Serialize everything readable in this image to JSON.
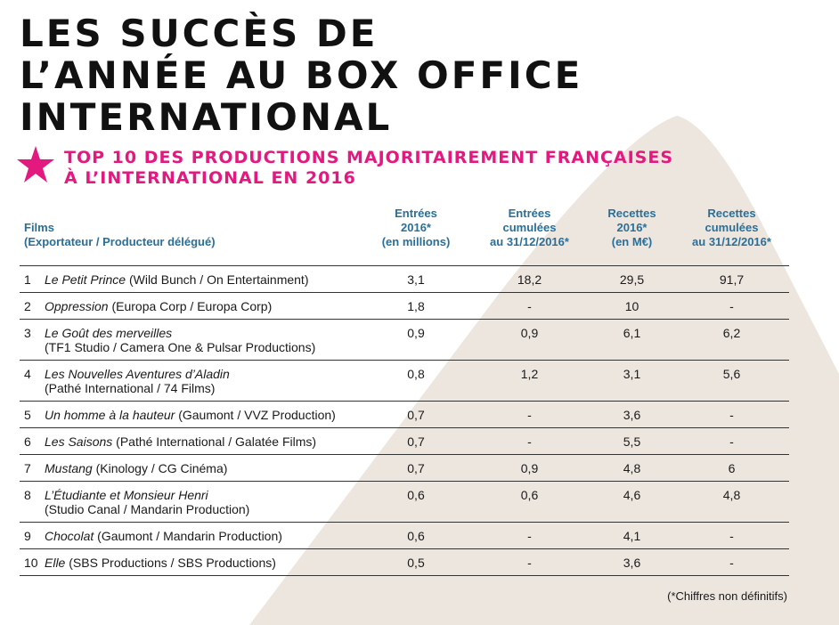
{
  "header": {
    "title": [
      "LES SUCCÈS DE",
      "L’ANNÉE AU BOX OFFICE",
      "INTERNATIONAL"
    ],
    "subtitle": [
      "TOP 10 DES PRODUCTIONS MAJORITAIREMENT FRANÇAISES",
      "À L’INTERNATIONAL EN 2016"
    ]
  },
  "table": {
    "columns": [
      [
        "Films",
        "(Exportateur / Producteur délégué)"
      ],
      [
        "Entrées",
        "2016*",
        "(en millions)"
      ],
      [
        "Entrées",
        "cumulées",
        "au 31/12/2016*"
      ],
      [
        "Recettes",
        "2016*",
        "(en M€)"
      ],
      [
        "Recettes",
        "cumulées",
        "au 31/12/2016*"
      ]
    ],
    "rows": [
      {
        "rank": "1",
        "title": "Le Petit Prince",
        "credits": "(Wild Bunch / On Entertainment)",
        "cells": [
          "3,1",
          "18,2",
          "29,5",
          "91,7"
        ]
      },
      {
        "rank": "2",
        "title": "Oppression",
        "credits": "(Europa Corp / Europa Corp)",
        "cells": [
          "1,8",
          "-",
          "10",
          "-"
        ]
      },
      {
        "rank": "3",
        "title": "Le Goût des merveilles",
        "credits": "(TF1 Studio / Camera One & Pulsar Productions)",
        "wrap": true,
        "cells": [
          "0,9",
          "0,9",
          "6,1",
          "6,2"
        ]
      },
      {
        "rank": "4",
        "title": "Les Nouvelles Aventures d’Aladin",
        "credits": "(Pathé International / 74 Films)",
        "wrap": true,
        "cells": [
          "0,8",
          "1,2",
          "3,1",
          "5,6"
        ]
      },
      {
        "rank": "5",
        "title": "Un homme à la hauteur",
        "credits": "(Gaumont / VVZ Production)",
        "cells": [
          "0,7",
          "-",
          "3,6",
          "-"
        ]
      },
      {
        "rank": "6",
        "title": "Les Saisons",
        "credits": "(Pathé International / Galatée Films)",
        "cells": [
          "0,7",
          "-",
          "5,5",
          "-"
        ]
      },
      {
        "rank": "7",
        "title": "Mustang",
        "credits": "(Kinology / CG Cinéma)",
        "cells": [
          "0,7",
          "0,9",
          "4,8",
          "6"
        ]
      },
      {
        "rank": "8",
        "title": "L’Étudiante et Monsieur Henri",
        "credits": "(Studio Canal / Mandarin Production)",
        "wrap": true,
        "cells": [
          "0,6",
          "0,6",
          "4,6",
          "4,8"
        ]
      },
      {
        "rank": "9",
        "title": "Chocolat",
        "credits": "(Gaumont / Mandarin Production)",
        "cells": [
          "0,6",
          "-",
          "4,1",
          "-"
        ]
      },
      {
        "rank": "10",
        "title": "Elle",
        "credits": "(SBS Productions / SBS Productions)",
        "cells": [
          "0,5",
          "-",
          "3,6",
          "-"
        ]
      }
    ]
  },
  "footnote": "(*Chiffres non définitifs)"
}
